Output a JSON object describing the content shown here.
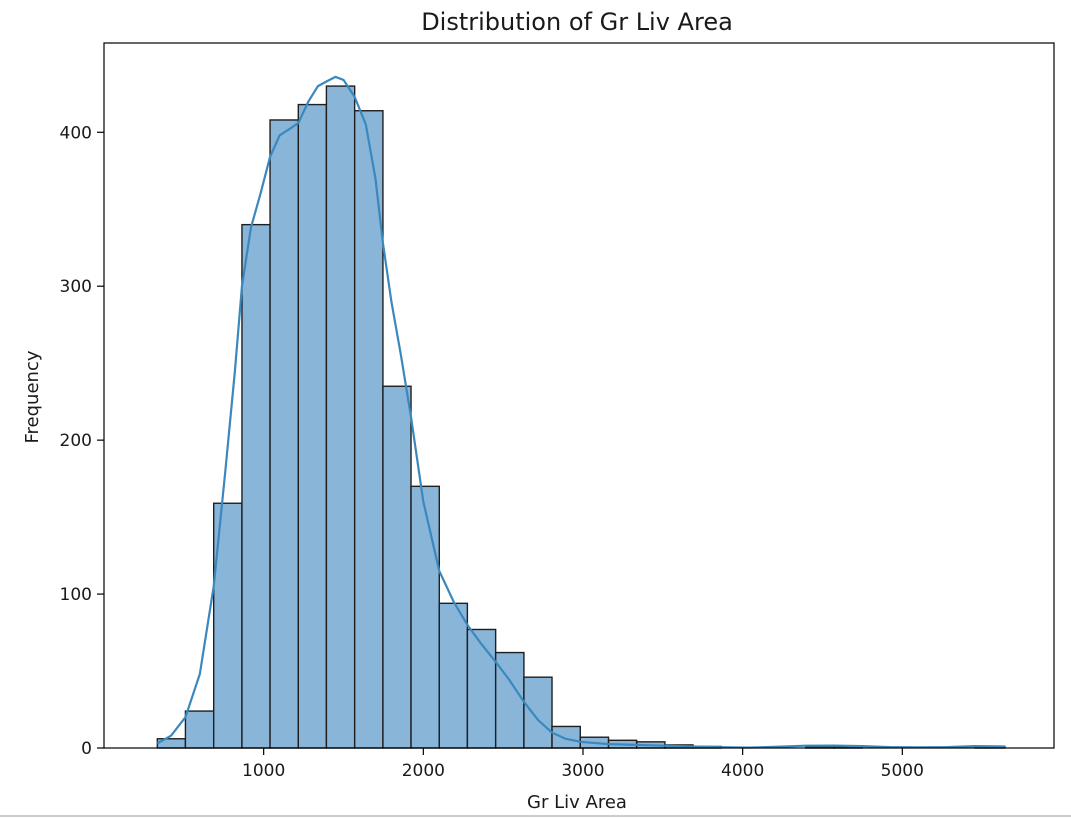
{
  "chart_data": {
    "type": "bar",
    "title": "Distribution of Gr Liv Area",
    "xlabel": "Gr Liv Area",
    "ylabel": "Frequency",
    "xlim": [
      0,
      5950
    ],
    "ylim": [
      0,
      458
    ],
    "xticks": [
      1000,
      2000,
      3000,
      4000,
      5000
    ],
    "yticks": [
      0,
      100,
      200,
      300,
      400
    ],
    "bins": [
      {
        "x0": 334,
        "x1": 510,
        "count": 6
      },
      {
        "x0": 510,
        "x1": 687,
        "count": 24
      },
      {
        "x0": 687,
        "x1": 864,
        "count": 159
      },
      {
        "x0": 864,
        "x1": 1040,
        "count": 340
      },
      {
        "x0": 1040,
        "x1": 1217,
        "count": 408
      },
      {
        "x0": 1217,
        "x1": 1393,
        "count": 418
      },
      {
        "x0": 1393,
        "x1": 1570,
        "count": 430
      },
      {
        "x0": 1570,
        "x1": 1747,
        "count": 414
      },
      {
        "x0": 1747,
        "x1": 1923,
        "count": 235
      },
      {
        "x0": 1923,
        "x1": 2100,
        "count": 170
      },
      {
        "x0": 2100,
        "x1": 2276,
        "count": 94
      },
      {
        "x0": 2276,
        "x1": 2453,
        "count": 77
      },
      {
        "x0": 2453,
        "x1": 2630,
        "count": 62
      },
      {
        "x0": 2630,
        "x1": 2806,
        "count": 46
      },
      {
        "x0": 2806,
        "x1": 2983,
        "count": 14
      },
      {
        "x0": 2983,
        "x1": 3160,
        "count": 7
      },
      {
        "x0": 3160,
        "x1": 3336,
        "count": 5
      },
      {
        "x0": 3336,
        "x1": 3513,
        "count": 4
      },
      {
        "x0": 3513,
        "x1": 3689,
        "count": 2
      },
      {
        "x0": 3689,
        "x1": 3866,
        "count": 1
      },
      {
        "x0": 3866,
        "x1": 4043,
        "count": 0
      },
      {
        "x0": 4043,
        "x1": 4219,
        "count": 0
      },
      {
        "x0": 4219,
        "x1": 4396,
        "count": 0
      },
      {
        "x0": 4396,
        "x1": 4573,
        "count": 1
      },
      {
        "x0": 4573,
        "x1": 4749,
        "count": 1
      },
      {
        "x0": 4749,
        "x1": 4926,
        "count": 0
      },
      {
        "x0": 4926,
        "x1": 5102,
        "count": 0
      },
      {
        "x0": 5102,
        "x1": 5279,
        "count": 0
      },
      {
        "x0": 5279,
        "x1": 5455,
        "count": 0
      },
      {
        "x0": 5455,
        "x1": 5642,
        "count": 1
      }
    ],
    "kde": {
      "x": [
        334,
        420,
        510,
        600,
        687,
        760,
        820,
        864,
        920,
        980,
        1040,
        1100,
        1160,
        1217,
        1280,
        1340,
        1393,
        1450,
        1500,
        1570,
        1640,
        1700,
        1747,
        1800,
        1860,
        1923,
        2000,
        2100,
        2190,
        2276,
        2360,
        2453,
        2540,
        2630,
        2720,
        2806,
        2890,
        2983,
        3160,
        3336,
        3513,
        3689,
        3866,
        4043,
        4219,
        4396,
        4573,
        4749,
        4926,
        5102,
        5279,
        5455,
        5642
      ],
      "y": [
        3,
        8,
        20,
        48,
        105,
        180,
        245,
        300,
        338,
        360,
        384,
        398,
        402,
        406,
        420,
        430,
        433,
        436,
        434,
        423,
        405,
        370,
        328,
        290,
        255,
        215,
        160,
        115,
        95,
        80,
        68,
        56,
        44,
        30,
        18,
        10,
        6,
        4,
        2.5,
        2,
        1.5,
        1,
        0.5,
        0.3,
        0.8,
        1.5,
        1.6,
        1.2,
        0.6,
        0.4,
        0.6,
        1.2,
        1
      ]
    }
  }
}
